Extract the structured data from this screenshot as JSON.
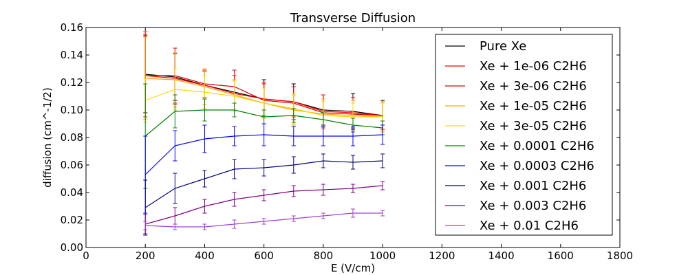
{
  "chart_data": {
    "type": "line",
    "title": "Transverse Diffusion",
    "xlabel": "E (V/cm)",
    "ylabel": "diffusion (cm^-1/2)",
    "xlim": [
      0,
      1800
    ],
    "ylim": [
      0,
      0.16
    ],
    "xticks": [
      "0",
      "200",
      "400",
      "600",
      "800",
      "1000",
      "1200",
      "1400",
      "1600",
      "1800"
    ],
    "yticks": [
      "0.00",
      "0.02",
      "0.04",
      "0.06",
      "0.08",
      "0.10",
      "0.12",
      "0.14",
      "0.16"
    ],
    "grid": false,
    "legend_position": "top-right",
    "x": [
      200,
      300,
      400,
      500,
      600,
      700,
      800,
      900,
      1000
    ],
    "series": [
      {
        "name": "Pure Xe",
        "color": "#000000",
        "values": [
          0.126,
          0.124,
          0.118,
          0.113,
          0.108,
          0.106,
          0.1,
          0.099,
          0.096
        ],
        "errors": [
          0.028,
          0.017,
          0.01,
          0.008,
          0.014,
          0.013,
          0.011,
          0.013,
          0.011
        ]
      },
      {
        "name": "Xe + 1e-06 C2H6",
        "color": "#ff0000",
        "values": [
          0.125,
          0.123,
          0.118,
          0.112,
          0.108,
          0.106,
          0.099,
          0.098,
          0.096
        ],
        "errors": [
          0.032,
          0.019,
          0.01,
          0.013,
          0.012,
          0.011,
          0.012,
          0.011,
          0.01
        ]
      },
      {
        "name": "Xe + 3e-06 C2H6",
        "color": "#dd0000",
        "values": [
          0.125,
          0.125,
          0.119,
          0.117,
          0.107,
          0.105,
          0.098,
          0.097,
          0.096
        ],
        "errors": [
          0.03,
          0.02,
          0.01,
          0.012,
          0.012,
          0.012,
          0.01,
          0.012,
          0.01
        ]
      },
      {
        "name": "Xe + 1e-05 C2H6",
        "color": "#ffa500",
        "values": [
          0.123,
          0.122,
          0.117,
          0.111,
          0.105,
          0.1,
          0.097,
          0.096,
          0.095
        ],
        "errors": [
          0.03,
          0.02,
          0.013,
          0.011,
          0.011,
          0.011,
          0.011,
          0.011,
          0.011
        ]
      },
      {
        "name": "Xe + 3e-05 C2H6",
        "color": "#ffd700",
        "values": [
          0.107,
          0.115,
          0.113,
          0.11,
          0.105,
          0.101,
          0.096,
          0.095,
          0.095
        ],
        "errors": [
          0.016,
          0.015,
          0.012,
          0.011,
          0.011,
          0.011,
          0.01,
          0.01,
          0.01
        ]
      },
      {
        "name": "Xe + 0.0001 C2H6",
        "color": "#008000",
        "values": [
          0.081,
          0.099,
          0.1,
          0.1,
          0.095,
          0.096,
          0.093,
          0.089,
          0.087
        ],
        "errors": [
          0.038,
          0.012,
          0.008,
          0.005,
          0.005,
          0.005,
          0.005,
          0.005,
          0.005
        ]
      },
      {
        "name": "Xe + 0.0003 C2H6",
        "color": "#0000ff",
        "values": [
          0.053,
          0.074,
          0.079,
          0.081,
          0.082,
          0.081,
          0.081,
          0.081,
          0.082
        ],
        "errors": [
          0.028,
          0.011,
          0.01,
          0.007,
          0.008,
          0.007,
          0.007,
          0.007,
          0.007
        ]
      },
      {
        "name": "Xe + 0.001 C2H6",
        "color": "#000080",
        "values": [
          0.029,
          0.043,
          0.05,
          0.057,
          0.058,
          0.06,
          0.063,
          0.062,
          0.063
        ],
        "errors": [
          0.02,
          0.011,
          0.006,
          0.007,
          0.006,
          0.006,
          0.005,
          0.005,
          0.005
        ]
      },
      {
        "name": "Xe + 0.003 C2H6",
        "color": "#800080",
        "values": [
          0.017,
          0.023,
          0.03,
          0.035,
          0.038,
          0.041,
          0.042,
          0.043,
          0.045
        ],
        "errors": [
          0.007,
          0.006,
          0.005,
          0.005,
          0.004,
          0.004,
          0.004,
          0.003,
          0.003
        ]
      },
      {
        "name": "Xe + 0.01 C2H6",
        "color": "#a040d0",
        "values": [
          0.016,
          0.015,
          0.015,
          0.017,
          0.019,
          0.021,
          0.023,
          0.025,
          0.025
        ],
        "errors": [
          0.003,
          0.002,
          0.002,
          0.003,
          0.002,
          0.002,
          0.002,
          0.003,
          0.002
        ]
      }
    ]
  }
}
